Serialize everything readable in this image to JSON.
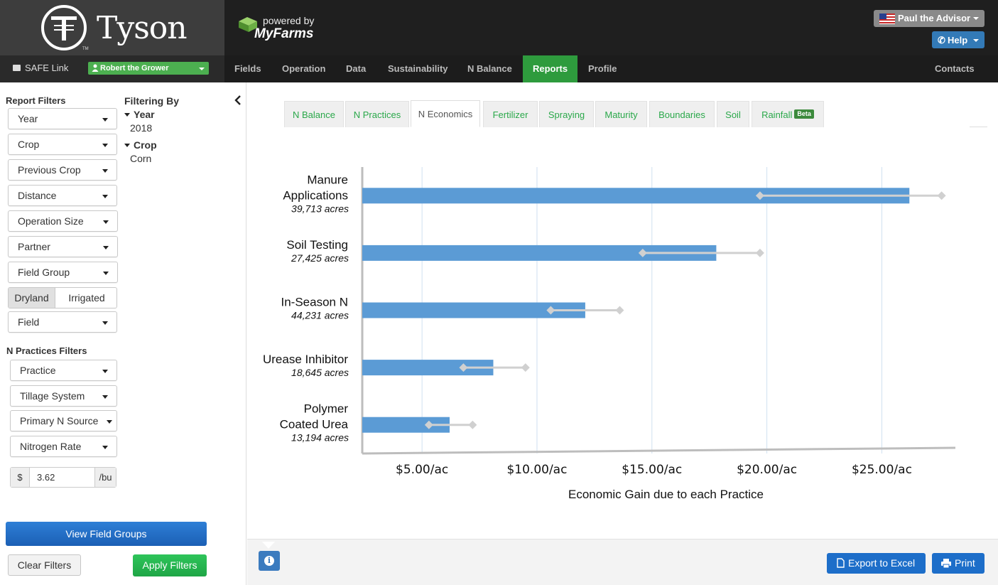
{
  "brand": {
    "logo_text": "Tyson",
    "logo_tm": "TM",
    "powered_by": "powered by",
    "myfarms": "MyFarms"
  },
  "header": {
    "user_label": "Paul the Advisor",
    "help_label": "Help"
  },
  "nav": {
    "safe_link": "SAFE Link",
    "grower": "Robert the Grower",
    "items": [
      "Fields",
      "Operation",
      "Data",
      "Sustainability",
      "N Balance",
      "Reports",
      "Profile"
    ],
    "active": "Reports",
    "contacts": "Contacts"
  },
  "sidebar": {
    "report_filters_title": "Report Filters",
    "report_filters": [
      "Year",
      "Crop",
      "Previous Crop",
      "Distance",
      "Operation Size",
      "Partner",
      "Field Group"
    ],
    "water_toggle": {
      "options": [
        "Dryland",
        "Irrigated"
      ],
      "selected": "Dryland"
    },
    "field_filter": "Field",
    "n_practices_title": "N Practices Filters",
    "n_practices_filters": [
      "Practice",
      "Tillage System",
      "Primary N Source",
      "Nitrogen Rate"
    ],
    "price": {
      "prefix": "$",
      "value": "3.62",
      "suffix": "/bu"
    },
    "filtering_by_title": "Filtering By",
    "filtering_by": [
      {
        "label": "Year",
        "value": "2018"
      },
      {
        "label": "Crop",
        "value": "Corn"
      }
    ],
    "view_field_groups": "View Field Groups",
    "clear_filters": "Clear Filters",
    "apply_filters": "Apply Filters"
  },
  "tabs": [
    {
      "label": "N Balance"
    },
    {
      "label": "N Practices"
    },
    {
      "label": "N Economics"
    },
    {
      "label": "Fertilizer"
    },
    {
      "label": "Spraying"
    },
    {
      "label": "Maturity"
    },
    {
      "label": "Boundaries"
    },
    {
      "label": "Soil"
    },
    {
      "label": "Rainfall",
      "badge": "Beta"
    }
  ],
  "active_tab": "N Economics",
  "chart_data": {
    "type": "bar",
    "orientation": "horizontal",
    "xlabel": "Economic Gain due to each Practice",
    "xlim": [
      2.4,
      28.2
    ],
    "xticks": [
      5,
      10,
      15,
      20,
      25
    ],
    "xtick_labels": [
      "$5.00/ac",
      "$10.00/ac",
      "$15.00/ac",
      "$20.00/ac",
      "$25.00/ac"
    ],
    "grid": true,
    "bar_color": "#5b9bd5",
    "range_color": "#d0d0d0",
    "categories": [
      {
        "name_lines": [
          "Manure",
          "Applications"
        ],
        "acres": "39,713 acres",
        "value": 26.2,
        "range": [
          19.7,
          27.6
        ]
      },
      {
        "name_lines": [
          "Soil Testing"
        ],
        "acres": "27,425 acres",
        "value": 17.8,
        "range": [
          14.6,
          19.7
        ]
      },
      {
        "name_lines": [
          "In-Season N"
        ],
        "acres": "44,231 acres",
        "value": 12.1,
        "range": [
          10.6,
          13.6
        ]
      },
      {
        "name_lines": [
          "Urease Inhibitor"
        ],
        "acres": "18,645 acres",
        "value": 8.1,
        "range": [
          6.8,
          9.5
        ]
      },
      {
        "name_lines": [
          "Polymer",
          "Coated Urea"
        ],
        "acres": "13,194 acres",
        "value": 6.2,
        "range": [
          5.3,
          7.2
        ]
      }
    ]
  },
  "footer": {
    "export_label": "Export to Excel",
    "print_label": "Print",
    "info_glyph": "i"
  }
}
